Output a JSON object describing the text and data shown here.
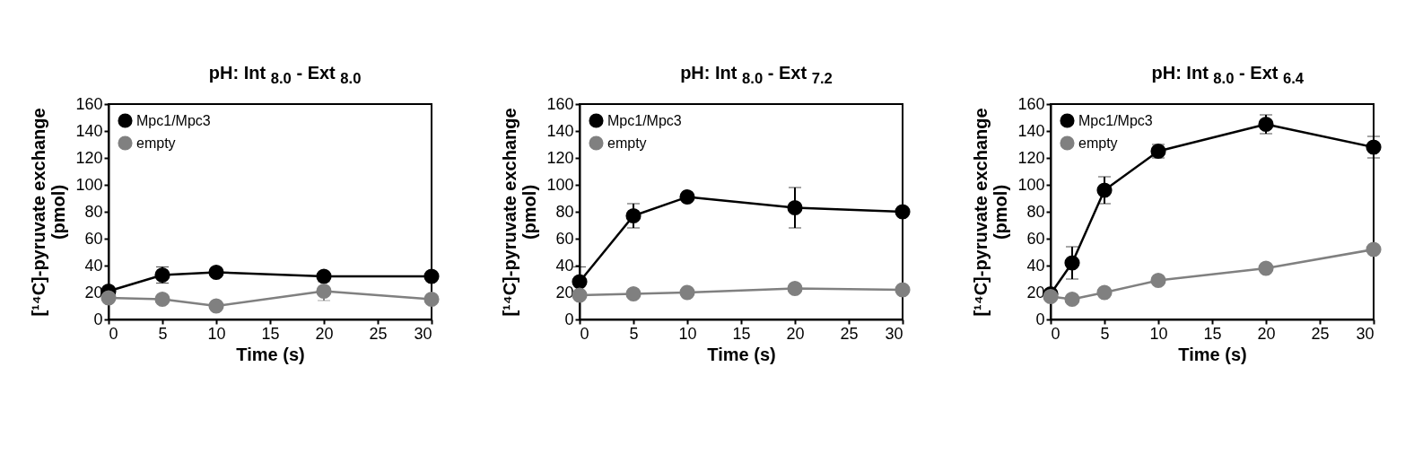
{
  "chart_data": [
    {
      "type": "line",
      "title": "pH: Int $_{8.0}$ - Ext $_{8.0}$",
      "xlabel": "Time (s)",
      "ylabel": "[¹⁴C]-pyruvate exchange (pmol)",
      "x": [
        0,
        5,
        10,
        20,
        30
      ],
      "xlim": [
        0,
        30
      ],
      "xticks": [
        0,
        5,
        10,
        15,
        20,
        25,
        30
      ],
      "ylim": [
        0,
        160
      ],
      "yticks": [
        0,
        20,
        40,
        60,
        80,
        100,
        120,
        140,
        160
      ],
      "grid": false,
      "legend": "top left",
      "marker": "circle",
      "line_style": "solid",
      "series": [
        {
          "name": "Mpc1/Mpc3",
          "color": "#000000",
          "values": [
            21,
            33,
            35,
            32,
            32
          ],
          "errors": [
            null,
            6,
            null,
            null,
            null
          ]
        },
        {
          "name": "empty",
          "color": "#808080",
          "values": [
            16,
            15,
            10,
            21,
            15
          ],
          "errors": [
            null,
            null,
            null,
            7,
            null
          ]
        }
      ]
    },
    {
      "type": "line",
      "title": "pH: Int $_{8.0}$ - Ext $_{7.2}$",
      "xlabel": "Time (s)",
      "ylabel": "[¹⁴C]-pyruvate exchange (pmol)",
      "x": [
        0,
        5,
        10,
        20,
        30
      ],
      "xlim": [
        0,
        30
      ],
      "xticks": [
        0,
        5,
        10,
        15,
        20,
        25,
        30
      ],
      "ylim": [
        0,
        160
      ],
      "yticks": [
        0,
        20,
        40,
        60,
        80,
        100,
        120,
        140,
        160
      ],
      "grid": false,
      "legend": "top left",
      "marker": "circle",
      "line_style": "solid",
      "series": [
        {
          "name": "Mpc1/Mpc3",
          "color": "#000000",
          "values": [
            28,
            77,
            91,
            83,
            80
          ],
          "errors": [
            11,
            9,
            null,
            15,
            null
          ]
        },
        {
          "name": "empty",
          "color": "#808080",
          "values": [
            18,
            19,
            20,
            23,
            22
          ],
          "errors": [
            null,
            null,
            null,
            null,
            null
          ]
        }
      ]
    },
    {
      "type": "line",
      "title": "pH: Int $_{8.0}$ - Ext $_{6.4}$",
      "xlabel": "Time (s)",
      "ylabel": "[¹⁴C]-pyruvate exchange (pmol)",
      "x": [
        0,
        2,
        5,
        10,
        20,
        30
      ],
      "xlim": [
        0,
        30
      ],
      "xticks": [
        0,
        5,
        10,
        15,
        20,
        25,
        30
      ],
      "ylim": [
        0,
        160
      ],
      "yticks": [
        0,
        20,
        40,
        60,
        80,
        100,
        120,
        140,
        160
      ],
      "grid": false,
      "legend": "top left",
      "marker": "circle",
      "line_style": "solid",
      "series": [
        {
          "name": "Mpc1/Mpc3",
          "color": "#000000",
          "values": [
            19,
            42,
            96,
            125,
            145,
            128
          ],
          "errors": [
            null,
            12,
            10,
            5,
            7,
            8
          ]
        },
        {
          "name": "empty",
          "color": "#808080",
          "values": [
            17,
            15,
            20,
            29,
            38,
            52
          ],
          "errors": [
            null,
            null,
            null,
            null,
            null,
            null
          ]
        }
      ]
    }
  ]
}
